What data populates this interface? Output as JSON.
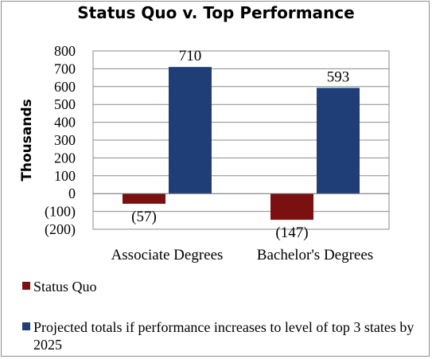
{
  "chart_data": {
    "type": "bar",
    "title": "Status Quo v. Top Performance",
    "ylabel": "Thousands",
    "categories": [
      "Associate Degrees",
      "Bachelor's Degrees"
    ],
    "series": [
      {
        "name": "Status Quo",
        "values": [
          -57,
          -147
        ],
        "labels": [
          "(57)",
          "(147)"
        ],
        "color": "#7a1010"
      },
      {
        "name": "Projected totals if performance increases to level of top 3 states by 2025",
        "values": [
          710,
          593
        ],
        "labels": [
          "710",
          "593"
        ],
        "color": "#1f3e78"
      }
    ],
    "yticks": [
      "800",
      "700",
      "600",
      "500",
      "400",
      "300",
      "200",
      "100",
      "0",
      "(100)",
      "(200)"
    ],
    "ytick_values": [
      800,
      700,
      600,
      500,
      400,
      300,
      200,
      100,
      0,
      -100,
      -200
    ],
    "ylim": [
      -200,
      800
    ],
    "grid": true,
    "legend": "bottom"
  }
}
